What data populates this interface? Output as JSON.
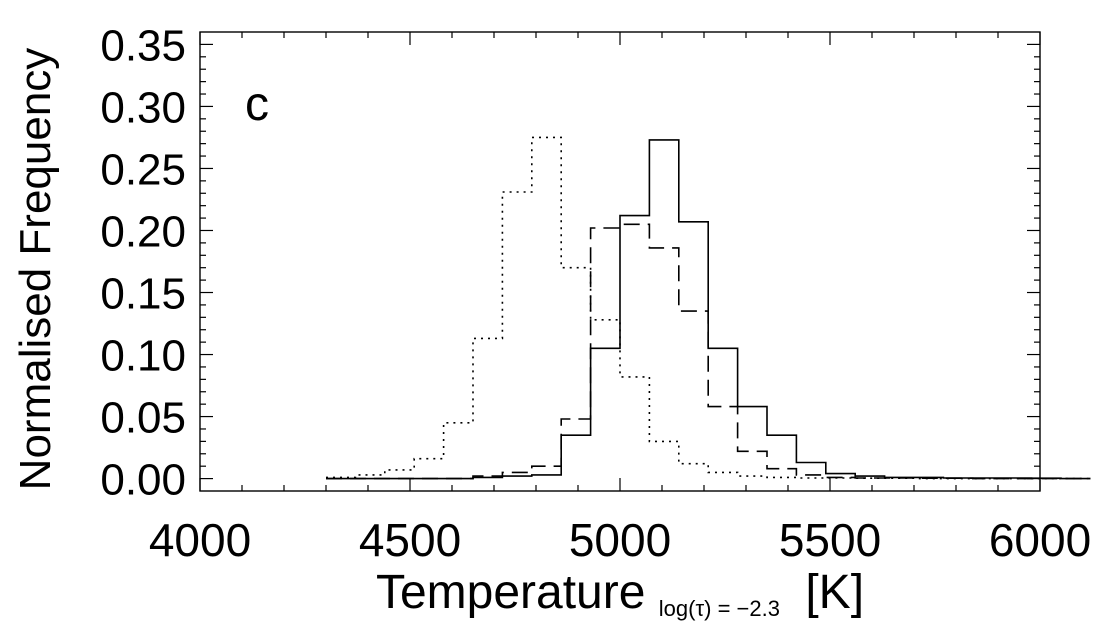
{
  "chart_data": {
    "type": "histogram",
    "panel_label": "c",
    "xlabel": {
      "main": "Temperature",
      "subscript": "log(τ) = −2.3",
      "unit": "[K]"
    },
    "ylabel": "Normalised Frequency",
    "xlim": [
      4000,
      6000
    ],
    "ylim": [
      -0.01,
      0.36
    ],
    "x_ticks": [
      4000,
      4500,
      5000,
      5500,
      6000
    ],
    "y_ticks": [
      0.0,
      0.05,
      0.1,
      0.15,
      0.2,
      0.25,
      0.3,
      0.35
    ],
    "bin_width": 70,
    "grid": false,
    "legend": "none",
    "series": [
      {
        "style": "solid",
        "bins_start": 4300,
        "values": [
          0,
          0,
          0,
          0,
          0,
          0.001,
          0.002,
          0.003,
          0.035,
          0.105,
          0.212,
          0.273,
          0.207,
          0.105,
          0.058,
          0.035,
          0.013,
          0.004,
          0.002,
          0.001,
          0.001,
          0.0005,
          0.0005,
          0.0005,
          0.0003,
          0
        ]
      },
      {
        "style": "dashed",
        "bins_start": 4300,
        "values": [
          0,
          0,
          0,
          0,
          0,
          0.002,
          0.005,
          0.01,
          0.048,
          0.202,
          0.205,
          0.186,
          0.135,
          0.058,
          0.022,
          0.008,
          0.003,
          0.001,
          0.0005,
          0.0005,
          0.0003,
          0.0003,
          0,
          0,
          0,
          0
        ]
      },
      {
        "style": "dotted",
        "bins_start": 4300,
        "values": [
          0.001,
          0.003,
          0.007,
          0.016,
          0.045,
          0.113,
          0.231,
          0.275,
          0.17,
          0.128,
          0.082,
          0.03,
          0.012,
          0.005,
          0.002,
          0.001,
          0.0005,
          0.0005,
          0.0003,
          0.0003,
          0,
          0,
          0,
          0,
          0,
          0
        ]
      }
    ]
  }
}
